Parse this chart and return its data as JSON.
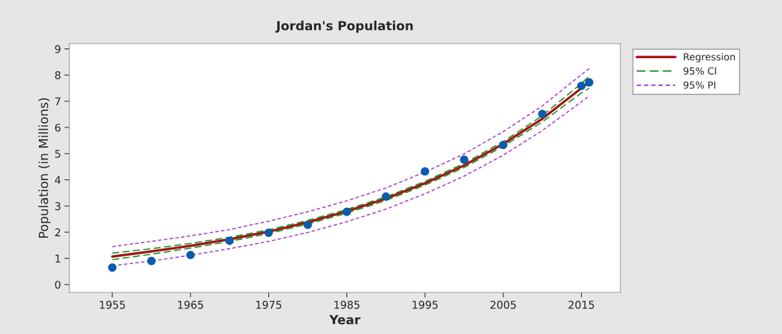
{
  "chart_data": {
    "type": "line",
    "title": "Jordan's Population",
    "xlabel": "Year",
    "ylabel": "Population (in Millions)",
    "xlim": [
      1949.5,
      2020
    ],
    "xticks": [
      1955,
      1965,
      1975,
      1985,
      1995,
      2005,
      2015
    ],
    "ylim": [
      -0.3,
      9.2
    ],
    "yticks": [
      0,
      1,
      2,
      3,
      4,
      5,
      6,
      7,
      8,
      9
    ],
    "grid": false,
    "legend": "top right",
    "series": [
      {
        "type": "scatter",
        "marker": "circle",
        "color": "#0b5cad",
        "x": [
          1955,
          1960,
          1965,
          1970,
          1975,
          1980,
          1985,
          1990,
          1995,
          2000,
          2005,
          2010,
          2015,
          2016
        ],
        "values": [
          0.65,
          0.9,
          1.13,
          1.67,
          1.98,
          2.28,
          2.78,
          3.36,
          4.32,
          4.77,
          5.33,
          6.52,
          7.59,
          7.72
        ]
      },
      {
        "marker": "none",
        "name": "Regression",
        "color": "#a01515",
        "line_style": "solid",
        "x": [
          1955,
          1960,
          1965,
          1970,
          1975,
          1980,
          1985,
          1990,
          1995,
          2000,
          2005,
          2010,
          2015,
          2016
        ],
        "values": [
          1.07,
          1.27,
          1.48,
          1.73,
          2.02,
          2.38,
          2.8,
          3.28,
          3.87,
          4.55,
          5.37,
          6.33,
          7.5,
          7.72
        ]
      },
      {
        "marker": "none",
        "name": "95% CI",
        "color": "#1a8c1a",
        "line_style": "dashed",
        "x": [
          1955,
          1960,
          1965,
          1970,
          1975,
          1980,
          1985,
          1990,
          1995,
          2000,
          2005,
          2010,
          2015,
          2016
        ],
        "values": [
          1.2,
          1.37,
          1.57,
          1.81,
          2.09,
          2.45,
          2.87,
          3.35,
          3.94,
          4.63,
          5.46,
          6.45,
          7.68,
          7.95
        ]
      },
      {
        "marker": "none",
        "color": "#1a8c1a",
        "line_style": "dashed",
        "x": [
          1955,
          1960,
          1965,
          1970,
          1975,
          1980,
          1985,
          1990,
          1995,
          2000,
          2005,
          2010,
          2015,
          2016
        ],
        "values": [
          0.95,
          1.16,
          1.39,
          1.65,
          1.95,
          2.31,
          2.73,
          3.21,
          3.8,
          4.47,
          5.28,
          6.21,
          7.32,
          7.5
        ]
      },
      {
        "marker": "none",
        "name": "95% PI",
        "color": "#a63fd6",
        "line_style": "dotted",
        "x": [
          1955,
          1960,
          1965,
          1970,
          1975,
          1980,
          1985,
          1990,
          1995,
          2000,
          2005,
          2010,
          2015,
          2016
        ],
        "values": [
          1.45,
          1.65,
          1.86,
          2.1,
          2.42,
          2.78,
          3.2,
          3.69,
          4.3,
          4.99,
          5.84,
          6.82,
          8.02,
          8.25
        ]
      },
      {
        "marker": "none",
        "color": "#a63fd6",
        "line_style": "dotted",
        "x": [
          1955,
          1960,
          1965,
          1970,
          1975,
          1980,
          1985,
          1990,
          1995,
          2000,
          2005,
          2010,
          2015,
          2016
        ],
        "values": [
          0.72,
          0.9,
          1.12,
          1.37,
          1.65,
          1.99,
          2.4,
          2.88,
          3.47,
          4.14,
          4.94,
          5.88,
          6.98,
          7.2
        ]
      }
    ]
  }
}
